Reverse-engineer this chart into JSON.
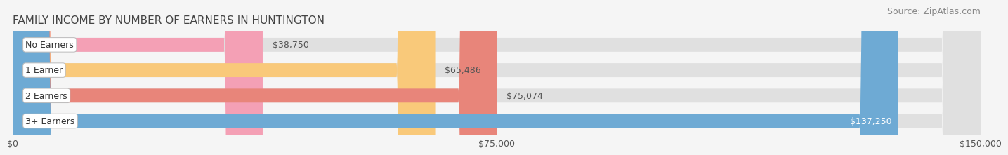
{
  "title": "FAMILY INCOME BY NUMBER OF EARNERS IN HUNTINGTON",
  "source": "Source: ZipAtlas.com",
  "categories": [
    "No Earners",
    "1 Earner",
    "2 Earners",
    "3+ Earners"
  ],
  "values": [
    38750,
    65486,
    75074,
    137250
  ],
  "bar_colors": [
    "#f4a0b5",
    "#f9c97a",
    "#e8857a",
    "#6eaad4"
  ],
  "bar_bg_color": "#e0e0e0",
  "label_colors": [
    "#555555",
    "#555555",
    "#555555",
    "#ffffff"
  ],
  "xlim": [
    0,
    150000
  ],
  "xticks": [
    0,
    75000,
    150000
  ],
  "xtick_labels": [
    "$0",
    "$75,000",
    "$150,000"
  ],
  "background_color": "#f5f5f5",
  "bar_height": 0.55,
  "title_fontsize": 11,
  "source_fontsize": 9,
  "label_fontsize": 9,
  "category_fontsize": 9
}
